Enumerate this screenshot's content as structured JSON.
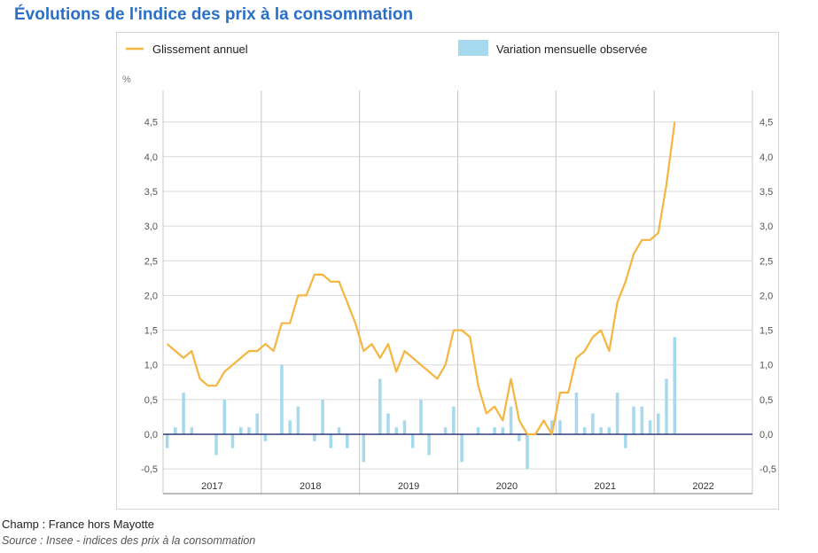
{
  "title": "Évolutions de l'indice des prix à la consommation",
  "footer": {
    "champ": "Champ : France hors Mayotte",
    "source": "Source : Insee - indices des prix à la consommation"
  },
  "colors": {
    "line": "#f5b53f",
    "bar": "#a6d9ee",
    "grid": "#d9d9d9",
    "year_sep": "#c8c8c8",
    "zero": "#1f2f6e",
    "title": "#2a6fc9"
  },
  "chart_data": {
    "type": "bar+line",
    "title": "Évolutions de l'indice des prix à la consommation",
    "unit_label": "%",
    "ylim": [
      -0.6,
      4.7
    ],
    "yticks": [
      -0.5,
      0.0,
      0.5,
      1.0,
      1.5,
      2.0,
      2.5,
      3.0,
      3.5,
      4.0,
      4.5
    ],
    "ytick_labels": [
      "-0,5",
      "0,0",
      "0,5",
      "1,0",
      "1,5",
      "2,0",
      "2,5",
      "3,0",
      "3,5",
      "4,0",
      "4,5"
    ],
    "years": [
      "2017",
      "2018",
      "2019",
      "2020",
      "2021",
      "2022"
    ],
    "months_per_year": 12,
    "legend": {
      "line": "Glissement annuel",
      "bars": "Variation mensuelle observée",
      "position": "top"
    },
    "series": [
      {
        "name": "Glissement annuel",
        "kind": "line",
        "values": [
          1.3,
          1.2,
          1.1,
          1.2,
          0.8,
          0.7,
          0.7,
          0.9,
          1.0,
          1.1,
          1.2,
          1.2,
          1.3,
          1.2,
          1.6,
          1.6,
          2.0,
          2.0,
          2.3,
          2.3,
          2.2,
          2.2,
          1.9,
          1.6,
          1.2,
          1.3,
          1.1,
          1.3,
          0.9,
          1.2,
          1.1,
          1.0,
          0.9,
          0.8,
          1.0,
          1.5,
          1.5,
          1.4,
          0.7,
          0.3,
          0.4,
          0.2,
          0.8,
          0.2,
          0.0,
          0.0,
          0.2,
          0.0,
          0.6,
          0.6,
          1.1,
          1.2,
          1.4,
          1.5,
          1.2,
          1.9,
          2.2,
          2.6,
          2.8,
          2.8,
          2.9,
          3.6,
          4.5
        ]
      },
      {
        "name": "Variation mensuelle observée",
        "kind": "bar",
        "values": [
          -0.2,
          0.1,
          0.6,
          0.1,
          0.0,
          0.0,
          -0.3,
          0.5,
          -0.2,
          0.1,
          0.1,
          0.3,
          -0.1,
          0.0,
          1.0,
          0.2,
          0.4,
          0.0,
          -0.1,
          0.5,
          -0.2,
          0.1,
          -0.2,
          0.0,
          -0.4,
          0.0,
          0.8,
          0.3,
          0.1,
          0.2,
          -0.2,
          0.5,
          -0.3,
          0.0,
          0.1,
          0.4,
          -0.4,
          0.0,
          0.1,
          0.0,
          0.1,
          0.1,
          0.4,
          -0.1,
          -0.5,
          0.0,
          0.0,
          0.2,
          0.2,
          0.0,
          0.6,
          0.1,
          0.3,
          0.1,
          0.1,
          0.6,
          -0.2,
          0.4,
          0.4,
          0.2,
          0.3,
          0.8,
          1.4
        ]
      }
    ]
  }
}
